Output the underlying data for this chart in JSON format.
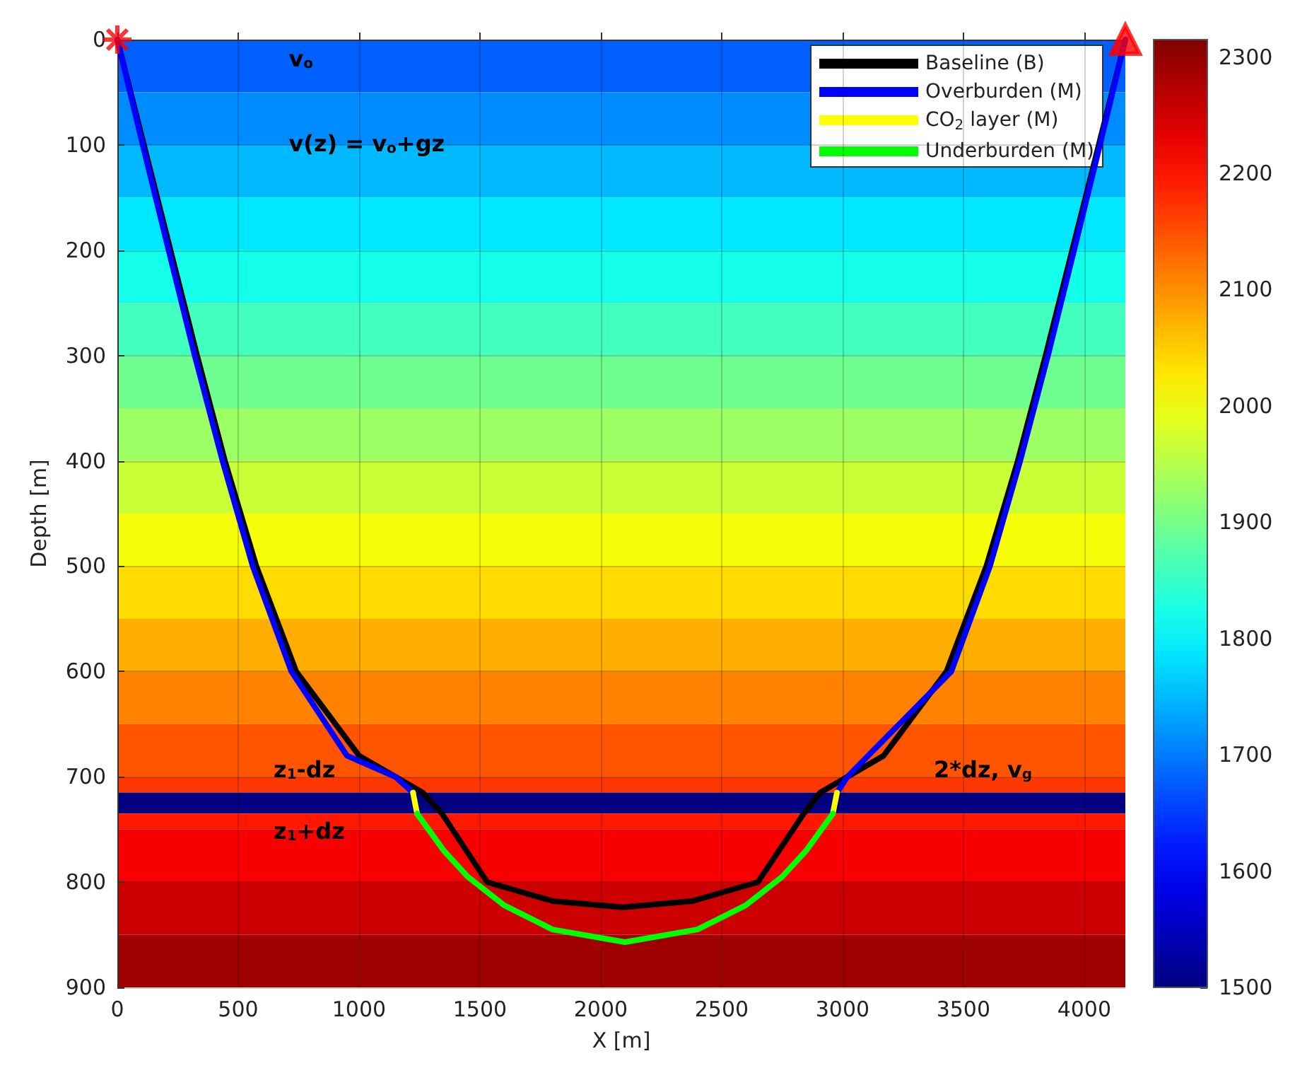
{
  "chart_data": {
    "type": "line",
    "xlabel": "X [m]",
    "ylabel": "Depth [m]",
    "xlim": [
      0,
      4170
    ],
    "xticks": [
      0,
      500,
      1000,
      1500,
      2000,
      2500,
      3000,
      3500,
      4000
    ],
    "ylim": [
      900,
      0
    ],
    "yticks": [
      0,
      100,
      200,
      300,
      400,
      500,
      600,
      700,
      800,
      900
    ],
    "clim": [
      1500,
      2315
    ],
    "cticks": [
      1500,
      1600,
      1700,
      1800,
      1900,
      2000,
      2100,
      2200,
      2300
    ],
    "grid": true,
    "legend": "top right",
    "bands": [
      {
        "axis": "y",
        "from": 0,
        "to": 50,
        "color": "#005fff"
      },
      {
        "axis": "y",
        "from": 50,
        "to": 100,
        "color": "#008cff"
      },
      {
        "axis": "y",
        "from": 100,
        "to": 150,
        "color": "#00b9ff"
      },
      {
        "axis": "y",
        "from": 150,
        "to": 200,
        "color": "#00e7ff"
      },
      {
        "axis": "y",
        "from": 200,
        "to": 250,
        "color": "#14ffeb"
      },
      {
        "axis": "y",
        "from": 250,
        "to": 300,
        "color": "#42ffbd"
      },
      {
        "axis": "y",
        "from": 300,
        "to": 350,
        "color": "#6fff90"
      },
      {
        "axis": "y",
        "from": 350,
        "to": 400,
        "color": "#9cff63"
      },
      {
        "axis": "y",
        "from": 400,
        "to": 450,
        "color": "#c9ff36"
      },
      {
        "axis": "y",
        "from": 450,
        "to": 500,
        "color": "#f6ff09"
      },
      {
        "axis": "y",
        "from": 500,
        "to": 550,
        "color": "#ffdb00"
      },
      {
        "axis": "y",
        "from": 550,
        "to": 600,
        "color": "#ffae00"
      },
      {
        "axis": "y",
        "from": 600,
        "to": 650,
        "color": "#ff8100"
      },
      {
        "axis": "y",
        "from": 650,
        "to": 700,
        "color": "#ff5400"
      },
      {
        "axis": "y",
        "from": 700,
        "to": 715,
        "color": "#ff3700"
      },
      {
        "axis": "y",
        "from": 715,
        "to": 735,
        "color": "#000080"
      },
      {
        "axis": "y",
        "from": 735,
        "to": 750,
        "color": "#ff1700"
      },
      {
        "axis": "y",
        "from": 750,
        "to": 800,
        "color": "#f90000"
      },
      {
        "axis": "y",
        "from": 800,
        "to": 850,
        "color": "#cc0000"
      },
      {
        "axis": "y",
        "from": 850,
        "to": 900,
        "color": "#9f0000"
      }
    ],
    "series": [
      {
        "name": "Baseline (B)",
        "color": "#000000",
        "x": [
          0,
          110,
          220,
          330,
          445,
          575,
          740,
          1000,
          1263,
          1343,
          1530,
          1800,
          2090,
          2380,
          2650,
          2840,
          2908,
          3170,
          3430,
          3595,
          3725,
          3840,
          3950,
          4060,
          4170
        ],
        "values": [
          0,
          100,
          200,
          300,
          400,
          500,
          600,
          680,
          715,
          735,
          800,
          818,
          824,
          818,
          800,
          735,
          715,
          680,
          600,
          500,
          400,
          300,
          200,
          100,
          0
        ]
      },
      {
        "name": "Overburden (M)",
        "color": "#0000ff",
        "x": [
          0,
          105,
          212,
          320,
          435,
          560,
          720,
          950,
          1150,
          1223,
          2100,
          2977,
          3020,
          3450,
          3610,
          3735,
          3850,
          3958,
          4065,
          4170
        ],
        "values": [
          0,
          100,
          200,
          300,
          400,
          500,
          600,
          680,
          700,
          715,
          null,
          715,
          700,
          600,
          500,
          400,
          300,
          200,
          100,
          0
        ]
      },
      {
        "name": "CO$_{2}$ layer (M)",
        "color": "#ffff00",
        "x": [
          1223,
          1240,
          2100,
          2960,
          2977
        ],
        "values": [
          715,
          735,
          null,
          735,
          715
        ]
      },
      {
        "name": "Underburden (M)",
        "color": "#00ff00",
        "x": [
          1240,
          1350,
          1450,
          1600,
          1800,
          2100,
          2400,
          2600,
          2750,
          2850,
          2960
        ],
        "values": [
          735,
          770,
          795,
          822,
          845,
          857,
          845,
          822,
          795,
          770,
          735
        ]
      },
      {
        "type": "scatter",
        "marker": "cross",
        "color": "#ff0000",
        "x": [
          0
        ],
        "values": [
          0
        ]
      },
      {
        "type": "scatter",
        "marker": "triangle",
        "color": "#ff0000",
        "x": [
          4170
        ],
        "values": [
          0
        ]
      }
    ],
    "annotations": [
      "v$_{o}$",
      "v(z) = v$_{o}$+gz",
      "z$_{1}$-dz",
      "z$_{1}$+dz",
      "2*dz, v$_{g}$"
    ]
  }
}
